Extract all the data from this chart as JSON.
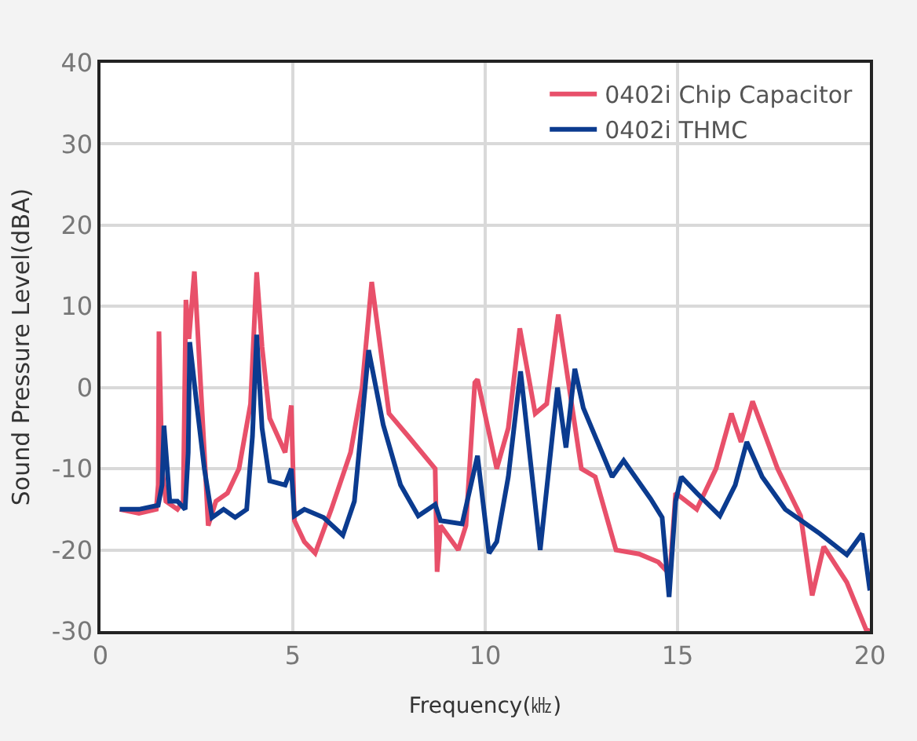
{
  "chart_data": {
    "type": "line",
    "xlabel": "Frequency(㎑)",
    "ylabel": "Sound Pressure Level(dBA)",
    "xlim": [
      0,
      20
    ],
    "xticks": [
      0,
      5,
      10,
      15,
      20
    ],
    "ylim": [
      -30,
      40
    ],
    "yticks": [
      -30,
      -20,
      -10,
      0,
      10,
      20,
      30,
      40
    ],
    "grid": true,
    "legend": "top right",
    "marker": "none",
    "line_style": "solid",
    "series": [
      {
        "name": "0402i Chip Capacitor",
        "color": "#e8506a",
        "x": [
          0.5,
          1.0,
          1.45,
          1.5,
          1.52,
          1.6,
          1.7,
          2.0,
          2.15,
          2.22,
          2.3,
          2.44,
          2.55,
          2.7,
          2.8,
          3.0,
          3.3,
          3.6,
          3.9,
          4.06,
          4.2,
          4.4,
          4.8,
          4.96,
          5.04,
          5.3,
          5.58,
          6.0,
          6.5,
          6.8,
          7.05,
          7.5,
          8.0,
          8.7,
          8.75,
          8.84,
          9.3,
          9.5,
          9.73,
          9.8,
          10.3,
          10.6,
          10.9,
          11.3,
          11.6,
          11.9,
          12.5,
          12.86,
          13.4,
          14.0,
          14.5,
          14.8,
          14.95,
          15.5,
          16.0,
          16.4,
          16.65,
          16.95,
          17.6,
          18.2,
          18.5,
          18.8,
          19.4,
          19.9,
          20.0
        ],
        "values": [
          -15,
          -15.5,
          -15,
          -12,
          6.9,
          -10,
          -14,
          -15,
          -14,
          10.8,
          6,
          14.3,
          5,
          -8,
          -17,
          -14,
          -13,
          -10,
          -2,
          14.2,
          5,
          -3.8,
          -8,
          -2.2,
          -16.4,
          -19,
          -20.4,
          -15,
          -8,
          0,
          13,
          -3.2,
          -6,
          -10,
          -22.7,
          -17,
          -20,
          -17,
          0.6,
          1.0,
          -10,
          -5,
          7.3,
          -3.2,
          -2,
          9,
          -10,
          -11,
          -20,
          -20.5,
          -21.5,
          -23,
          -13,
          -15,
          -10,
          -3.2,
          -6.7,
          -1.7,
          -10,
          -15.8,
          -25.6,
          -19.6,
          -24,
          -29.8,
          -30
        ]
      },
      {
        "name": "0402i THMC",
        "color": "#0b3b8f",
        "x": [
          0.5,
          1.0,
          1.5,
          1.6,
          1.65,
          1.8,
          2.0,
          2.2,
          2.28,
          2.32,
          2.5,
          2.7,
          2.9,
          3.2,
          3.5,
          3.8,
          3.95,
          4.06,
          4.2,
          4.4,
          4.8,
          4.96,
          5.04,
          5.3,
          5.8,
          6.3,
          6.6,
          6.97,
          7.35,
          7.8,
          8.26,
          8.7,
          8.84,
          9.4,
          9.8,
          10.1,
          10.3,
          10.6,
          10.92,
          11.43,
          11.88,
          12.1,
          12.33,
          12.55,
          13.3,
          13.6,
          14.3,
          14.6,
          14.78,
          14.95,
          15.1,
          15.5,
          16.1,
          16.5,
          16.8,
          17.2,
          17.8,
          18.7,
          19.4,
          19.8,
          20.0
        ],
        "values": [
          -15,
          -15,
          -14.5,
          -12,
          -4.7,
          -14,
          -14,
          -15,
          -8,
          5.6,
          -2,
          -10,
          -16,
          -15,
          -16,
          -15,
          -6,
          6.5,
          -5,
          -11.5,
          -12,
          -10,
          -15.8,
          -15,
          -16,
          -18.2,
          -14,
          4.6,
          -4.6,
          -12,
          -15.8,
          -14.4,
          -16.4,
          -16.8,
          -8.4,
          -20.4,
          -19,
          -11,
          2,
          -20,
          0,
          -7.4,
          2.3,
          -2.5,
          -11,
          -9,
          -13.7,
          -16,
          -25.8,
          -14,
          -11,
          -13,
          -15.8,
          -12,
          -6.7,
          -11,
          -15,
          -18,
          -20.6,
          -18,
          -25
        ]
      }
    ]
  }
}
